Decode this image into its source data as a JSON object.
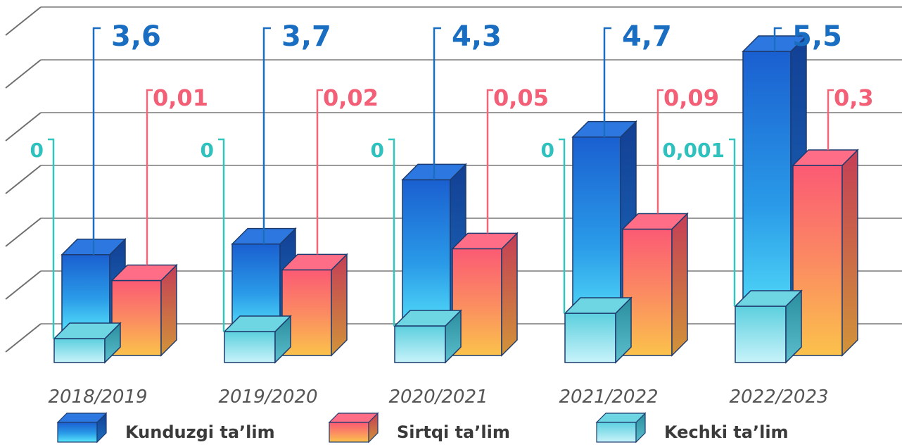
{
  "chart_data": {
    "type": "bar",
    "title": "",
    "xlabel": "",
    "ylabel": "",
    "categories": [
      "2018/2019",
      "2019/2020",
      "2020/2021",
      "2021/2022",
      "2022/2023"
    ],
    "series": [
      {
        "name": "Kunduzgi ta’lim",
        "values": [
          3.6,
          3.7,
          4.3,
          4.7,
          5.5
        ],
        "labels": [
          "3,6",
          "3,7",
          "4,3",
          "4,7",
          "5,5"
        ],
        "color": "#1e73d6"
      },
      {
        "name": "Sirtqi ta’lim",
        "values": [
          0.01,
          0.02,
          0.05,
          0.09,
          0.3
        ],
        "labels": [
          "0,01",
          "0,02",
          "0,05",
          "0,09",
          "0,3"
        ],
        "color": "#f26a7a"
      },
      {
        "name": "Kechki ta’lim",
        "values": [
          0,
          0,
          0,
          0,
          0.001
        ],
        "labels": [
          "0",
          "0",
          "0",
          "0",
          "0,001"
        ],
        "color": "#2fc1bd"
      }
    ],
    "grid": true,
    "legend_position": "bottom"
  }
}
